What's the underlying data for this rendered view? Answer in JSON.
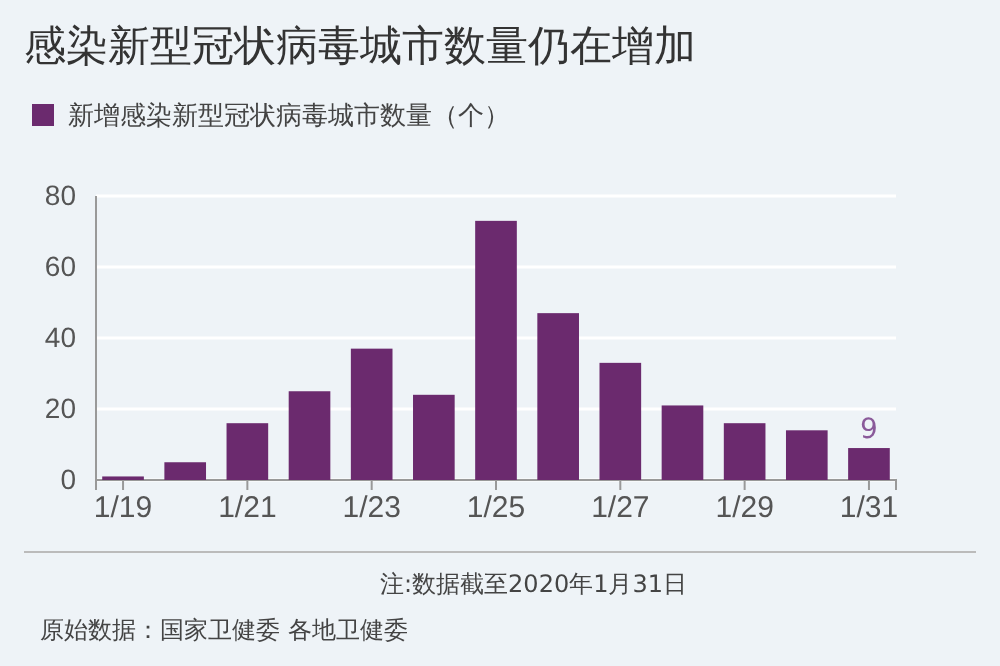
{
  "chart_data": {
    "type": "bar",
    "title": "感染新型冠状病毒城市数量仍在增加",
    "categories": [
      "1/19",
      null,
      "1/21",
      null,
      "1/23",
      null,
      "1/25",
      null,
      "1/27",
      null,
      "1/29",
      null,
      "1/31"
    ],
    "series": [
      {
        "name": "新增感染新型冠状病毒城市数量（个）",
        "color": "#6b2a6e",
        "values": [
          1,
          5,
          16,
          25,
          37,
          24,
          73,
          47,
          33,
          21,
          16,
          14,
          9
        ],
        "value_labels": [
          null,
          null,
          null,
          null,
          null,
          null,
          null,
          null,
          null,
          null,
          null,
          null,
          "9"
        ]
      }
    ],
    "ylim": [
      0,
      80
    ],
    "yticks": [
      0,
      20,
      40,
      60,
      80
    ],
    "grid": "y",
    "legend": "top left",
    "annotations": [
      "注:数据截至2020年1月31日",
      "原始数据：国家卫健委 各地卫健委"
    ]
  }
}
